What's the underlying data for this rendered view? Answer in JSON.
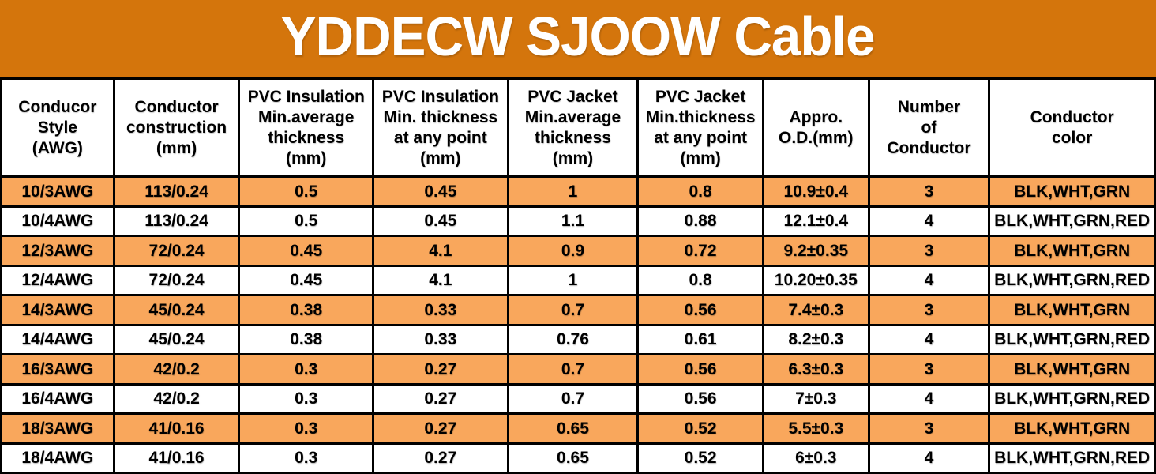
{
  "title": "YDDECW SJOOW Cable",
  "colors": {
    "banner_bg": "#D4750C",
    "row_orange": "#F9A75C",
    "row_white": "#FFFFFF",
    "border": "#000000",
    "header_bg": "#FFFFFF",
    "title_text": "#FFFFFF",
    "cell_text": "#000000"
  },
  "table": {
    "columns": [
      {
        "id": "conductor-style",
        "label": "Conducor\nStyle\n(AWG)",
        "width_pct": 9.77
      },
      {
        "id": "conductor-construction",
        "label": "Conductor\nconstruction\n(mm)",
        "width_pct": 10.86
      },
      {
        "id": "pvc-insulation-min-average",
        "label": "PVC Insulation\nMin.average\nthickness\n(mm)",
        "width_pct": 11.61
      },
      {
        "id": "pvc-insulation-min-point",
        "label": "PVC Insulation\nMin. thickness\nat any point\n(mm)",
        "width_pct": 11.68
      },
      {
        "id": "pvc-jacket-min-average",
        "label": "PVC Jacket\nMin.average\nthickness\n(mm)",
        "width_pct": 11.27
      },
      {
        "id": "pvc-jacket-min-point",
        "label": "PVC Jacket\nMin.thickness\nat any point\n(mm)",
        "width_pct": 10.86
      },
      {
        "id": "approx-od",
        "label": "Appro.\nO.D.(mm)",
        "width_pct": 9.15
      },
      {
        "id": "number-of-conductor",
        "label": "Number\nof\nConductor",
        "width_pct": 10.45
      },
      {
        "id": "conductor-color",
        "label": "Conductor\ncolor",
        "width_pct": 14.35
      }
    ],
    "rows": [
      {
        "highlight": true,
        "cells": [
          "10/3AWG",
          "113/0.24",
          "0.5",
          "0.45",
          "1",
          "0.8",
          "10.9±0.4",
          "3",
          "BLK,WHT,GRN"
        ]
      },
      {
        "highlight": false,
        "cells": [
          "10/4AWG",
          "113/0.24",
          "0.5",
          "0.45",
          "1.1",
          "0.88",
          "12.1±0.4",
          "4",
          "BLK,WHT,GRN,RED"
        ]
      },
      {
        "highlight": true,
        "cells": [
          "12/3AWG",
          "72/0.24",
          "0.45",
          "4.1",
          "0.9",
          "0.72",
          "9.2±0.35",
          "3",
          "BLK,WHT,GRN"
        ]
      },
      {
        "highlight": false,
        "cells": [
          "12/4AWG",
          "72/0.24",
          "0.45",
          "4.1",
          "1",
          "0.8",
          "10.20±0.35",
          "4",
          "BLK,WHT,GRN,RED"
        ]
      },
      {
        "highlight": true,
        "cells": [
          "14/3AWG",
          "45/0.24",
          "0.38",
          "0.33",
          "0.7",
          "0.56",
          "7.4±0.3",
          "3",
          "BLK,WHT,GRN"
        ]
      },
      {
        "highlight": false,
        "cells": [
          "14/4AWG",
          "45/0.24",
          "0.38",
          "0.33",
          "0.76",
          "0.61",
          "8.2±0.3",
          "4",
          "BLK,WHT,GRN,RED"
        ]
      },
      {
        "highlight": true,
        "cells": [
          "16/3AWG",
          "42/0.2",
          "0.3",
          "0.27",
          "0.7",
          "0.56",
          "6.3±0.3",
          "3",
          "BLK,WHT,GRN"
        ]
      },
      {
        "highlight": false,
        "cells": [
          "16/4AWG",
          "42/0.2",
          "0.3",
          "0.27",
          "0.7",
          "0.56",
          "7±0.3",
          "4",
          "BLK,WHT,GRN,RED"
        ]
      },
      {
        "highlight": true,
        "cells": [
          "18/3AWG",
          "41/0.16",
          "0.3",
          "0.27",
          "0.65",
          "0.52",
          "5.5±0.3",
          "3",
          "BLK,WHT,GRN"
        ]
      },
      {
        "highlight": false,
        "cells": [
          "18/4AWG",
          "41/0.16",
          "0.3",
          "0.27",
          "0.65",
          "0.52",
          "6±0.3",
          "4",
          "BLK,WHT,GRN,RED"
        ]
      }
    ]
  }
}
